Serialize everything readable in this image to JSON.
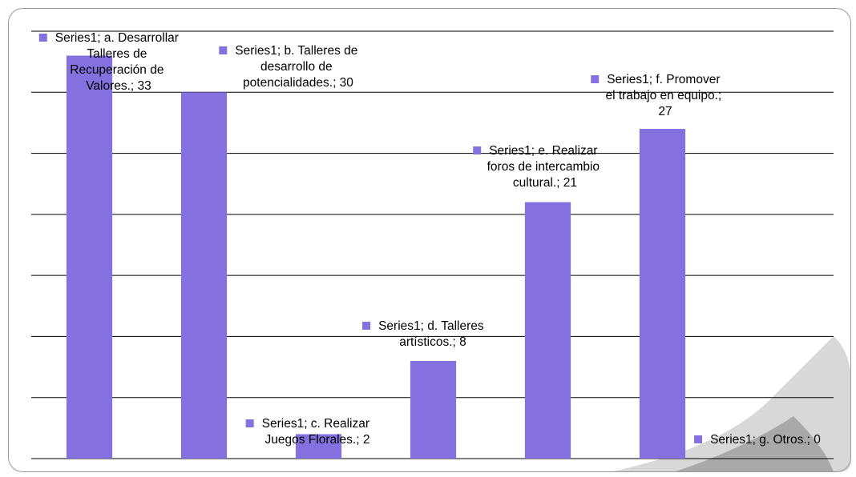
{
  "chart_data": {
    "type": "bar",
    "values": [
      33,
      30,
      2,
      8,
      21,
      27,
      0
    ],
    "value_labels": [
      "Series1; a. Desarrollar\nTalleres de\nRecuperación de\nValores.; 33",
      "Series1; b. Talleres de\ndesarrollo de\npotencialidades.; 30",
      "Series1; c. Realizar\nJuegos Florales.; 2",
      "Series1; d. Talleres\nartísticos.; 8",
      "Series1; e. Realizar\nforos de intercambio\ncultural.; 21",
      "Series1; f.  Promover\nel trabajo en equipo.;\n27",
      "Series1; g. Otros.; 0"
    ],
    "color": "#8470de",
    "ylim": [
      0,
      35
    ],
    "yticks": [
      0,
      5,
      10,
      15,
      20,
      25,
      30,
      35
    ],
    "grid": true
  }
}
